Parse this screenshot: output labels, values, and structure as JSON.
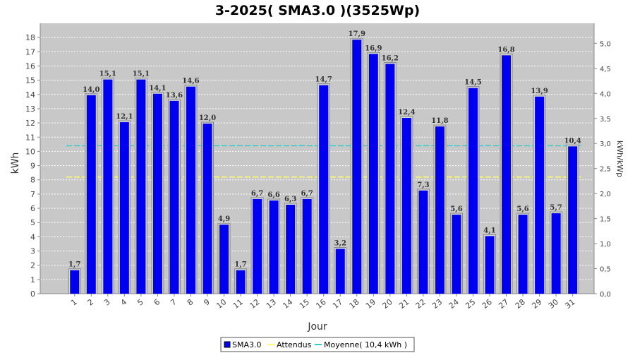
{
  "chart_data": {
    "type": "bar",
    "title": "3-2025( SMA3.0 )(3525Wp)",
    "xlabel": "Jour",
    "ylabel": "kWh",
    "y2label": "kWh/kWp",
    "ylim": [
      0,
      19
    ],
    "y2lim": [
      0,
      5.4
    ],
    "yticks": [
      0,
      1,
      2,
      3,
      4,
      5,
      6,
      7,
      8,
      9,
      10,
      11,
      12,
      13,
      14,
      15,
      16,
      17,
      18
    ],
    "y2ticks": [
      "0,0",
      "0,5",
      "1,0",
      "1,5",
      "2,0",
      "2,5",
      "3,0",
      "3,5",
      "4,0",
      "4,5",
      "5,0"
    ],
    "grid": true,
    "legend_position": "bottom",
    "categories": [
      "1",
      "2",
      "3",
      "4",
      "5",
      "6",
      "7",
      "8",
      "9",
      "10",
      "11",
      "12",
      "13",
      "14",
      "15",
      "16",
      "17",
      "18",
      "19",
      "20",
      "21",
      "22",
      "23",
      "24",
      "25",
      "26",
      "27",
      "28",
      "29",
      "30",
      "31"
    ],
    "series": [
      {
        "name": "SMA3.0",
        "color": "#0000ee",
        "values": [
          1.7,
          14.0,
          15.1,
          12.1,
          15.1,
          14.1,
          13.6,
          14.6,
          12.0,
          4.9,
          1.7,
          6.7,
          6.6,
          6.3,
          6.7,
          14.7,
          3.2,
          17.9,
          16.9,
          16.2,
          12.4,
          7.3,
          11.8,
          5.6,
          14.5,
          4.1,
          16.8,
          5.6,
          13.9,
          5.7,
          10.4
        ],
        "labels": [
          "1,7",
          "14,0",
          "15,1",
          "12,1",
          "15,1",
          "14,1",
          "13,6",
          "14,6",
          "12,0",
          "4,9",
          "1,7",
          "6,7",
          "6,6",
          "6,3",
          "6,7",
          "14,7",
          "3,2",
          "17,9",
          "16,9",
          "16,2",
          "12,4",
          "7,3",
          "11,8",
          "5,6",
          "14,5",
          "4,1",
          "16,8",
          "5,6",
          "13,9",
          "5,7",
          "10,4"
        ]
      }
    ],
    "reference_lines": [
      {
        "name": "Attendus",
        "value": 8.2,
        "color": "#ffff66"
      },
      {
        "name": "Moyenne( 10,4 kWh )",
        "value": 10.4,
        "color": "#33cccc"
      }
    ]
  },
  "legend": {
    "items": [
      "SMA3.0",
      "Attendus",
      "Moyenne( 10,4 kWh )"
    ]
  }
}
